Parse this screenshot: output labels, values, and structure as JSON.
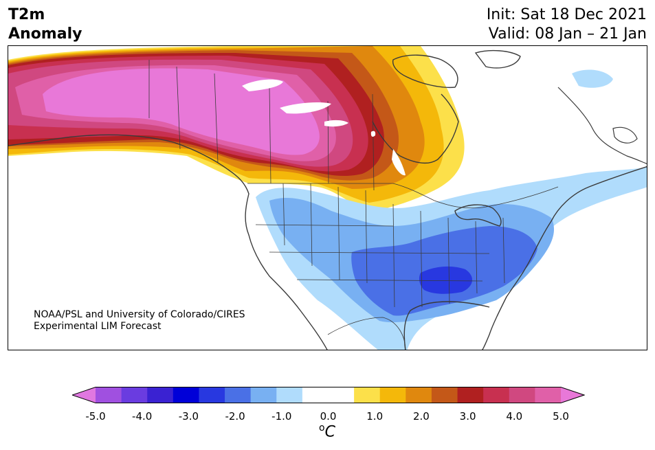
{
  "header": {
    "title_line1": "T2m",
    "title_line2": "Anomaly",
    "init": "Init: Sat 18 Dec 2021",
    "valid": "Valid: 08 Jan – 21 Jan"
  },
  "credit": {
    "line1": "NOAA/PSL and University of Colorado/CIRES",
    "line2": "Experimental LIM Forecast"
  },
  "colorbar": {
    "colors": [
      "#e078e0",
      "#a050e0",
      "#6a3ce0",
      "#3a22d2",
      "#0000d8",
      "#2838e0",
      "#4a70e6",
      "#78b0f2",
      "#b0dcfc",
      "#ffffff",
      "#ffffff",
      "#fce04a",
      "#f4b80a",
      "#e0880e",
      "#c45818",
      "#b02020",
      "#c83050",
      "#d04880",
      "#e060a8",
      "#e878d8"
    ],
    "ticks": [
      "-5.0",
      "-4.0",
      "-3.0",
      "-2.0",
      "-1.0",
      "0.0",
      "1.0",
      "2.0",
      "3.0",
      "4.0",
      "5.0"
    ],
    "unit_sup": "o",
    "unit": "C"
  },
  "palette": {
    "warm_extreme": "#e878d8",
    "warm_5": "#d04880",
    "warm_4": "#b02020",
    "warm_3": "#c45818",
    "warm_2": "#e0880e",
    "warm_1": "#f4b80a",
    "warm_0": "#fce04a",
    "cold_1": "#b0dcfc",
    "cold_2": "#78b0f2",
    "cold_3": "#4a70e6",
    "cold_4": "#2838e0"
  }
}
